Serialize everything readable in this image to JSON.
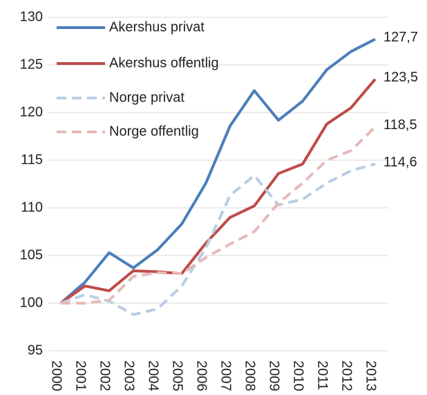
{
  "chart_data": {
    "type": "line",
    "categories": [
      "2000",
      "2001",
      "2002",
      "2003",
      "2004",
      "2005",
      "2006",
      "2007",
      "2008",
      "2009",
      "2010",
      "2011",
      "2012",
      "2013"
    ],
    "series": [
      {
        "name": "Akershus privat",
        "color": "#4a7ebb",
        "dash": false,
        "values": [
          100,
          102.2,
          105.3,
          103.7,
          105.6,
          108.3,
          112.6,
          118.6,
          122.3,
          119.2,
          121.2,
          124.5,
          126.4,
          127.7
        ],
        "value_labels": [
          null,
          null,
          null,
          null,
          null,
          null,
          null,
          null,
          null,
          null,
          null,
          null,
          null,
          "127,7"
        ]
      },
      {
        "name": "Akershus offentlig",
        "color": "#be4b48",
        "dash": false,
        "values": [
          100,
          101.8,
          101.3,
          103.4,
          103.3,
          103.1,
          106.3,
          109.0,
          110.2,
          113.6,
          114.6,
          118.8,
          120.5,
          123.5
        ],
        "value_labels": [
          null,
          null,
          null,
          null,
          null,
          null,
          null,
          null,
          null,
          null,
          null,
          null,
          null,
          "123,5"
        ]
      },
      {
        "name": "Norge privat",
        "color": "#b9cde5",
        "dash": true,
        "values": [
          100,
          100.9,
          100.2,
          98.8,
          99.4,
          101.8,
          105.8,
          111.3,
          113.4,
          110.3,
          110.9,
          112.6,
          113.9,
          114.6
        ],
        "value_labels": [
          null,
          null,
          null,
          null,
          null,
          null,
          null,
          null,
          null,
          null,
          null,
          null,
          null,
          "114,6"
        ]
      },
      {
        "name": "Norge offentlig",
        "color": "#e6b9b8",
        "dash": true,
        "values": [
          100,
          100.0,
          100.3,
          102.8,
          103.2,
          103.1,
          104.8,
          106.2,
          107.5,
          110.5,
          112.6,
          115.0,
          116.0,
          118.5
        ],
        "value_labels": [
          null,
          null,
          null,
          null,
          null,
          null,
          null,
          null,
          null,
          null,
          null,
          null,
          null,
          "118,5"
        ]
      }
    ],
    "ylim": [
      95,
      130
    ],
    "yticks": [
      95,
      100,
      105,
      110,
      115,
      120,
      125,
      130
    ],
    "grid": true,
    "legend": "top-left"
  }
}
